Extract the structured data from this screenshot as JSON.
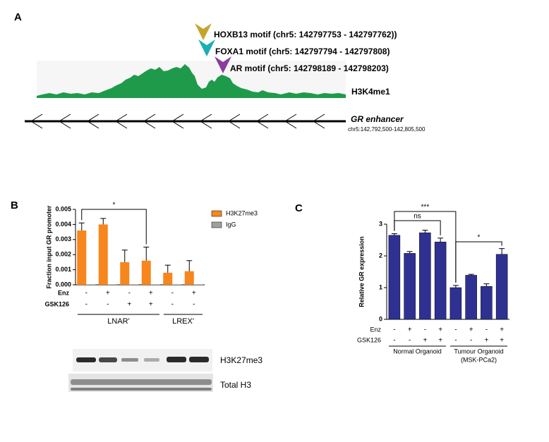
{
  "panel_a": {
    "label": "A",
    "motifs": [
      {
        "label": "HOXB13 motif (chr5: 142797753 - 142797762))",
        "color": "#c4a52c"
      },
      {
        "label": "FOXA1 motif (chr5: 142797794 - 142797808)",
        "color": "#1aaeb4"
      },
      {
        "label": "AR motif (chr5: 142798189 - 142798203)",
        "color": "#8a3d9c"
      }
    ],
    "track_label": "H3K4me1",
    "track_color": "#1e9a4a",
    "enhancer_label": "GR enhancer",
    "coordinates": "chr5:142,792,500-142,805,500"
  },
  "chart_data": [
    {
      "panel": "B",
      "type": "bar",
      "y_label": "Fraction input GR promoter",
      "ylim": [
        0,
        0.005
      ],
      "yticks": [
        {
          "value": 0,
          "label": "0.000"
        },
        0.001,
        0.002,
        0.003,
        0.004,
        0.005
      ],
      "categories": [
        null,
        null,
        null,
        null,
        null,
        null
      ],
      "series": [
        {
          "name": "H3K27me3",
          "color": "#f7861d",
          "values": [
            0.0036,
            0.004,
            0.0015,
            0.0016,
            0.0008,
            0.0009
          ],
          "errors": [
            0.0005,
            0.0004,
            0.0008,
            0.0009,
            0.0005,
            0.0007
          ]
        },
        {
          "name": "IgG",
          "color": "#a0a0a0",
          "values": [
            3e-05,
            3e-05,
            3e-05,
            3e-05,
            3e-05,
            3e-05
          ]
        }
      ],
      "condition_rows": [
        {
          "name": "Enz",
          "values": [
            "-",
            "+",
            "-",
            "+",
            "-",
            "+"
          ]
        },
        {
          "name": "GSK126",
          "values": [
            "-",
            "-",
            "+",
            "+",
            "-",
            "-"
          ]
        }
      ],
      "groups": [
        {
          "label": "LNAR'",
          "count": 4
        },
        {
          "label": "LREX'",
          "count": 2
        }
      ],
      "significance": [
        {
          "label": "*",
          "from": 0,
          "to": 3
        }
      ],
      "legend": "right"
    },
    {
      "panel": "C",
      "type": "bar",
      "y_label": "Relative GR expression",
      "ylim": [
        0,
        3
      ],
      "yticks": [
        0,
        1,
        2,
        3
      ],
      "categories": [
        null,
        null,
        null,
        null,
        null,
        null,
        null,
        null
      ],
      "series": [
        {
          "name": null,
          "color": "#2e3192",
          "values": [
            2.65,
            2.08,
            2.73,
            2.44,
            1.0,
            1.39,
            1.04,
            2.05
          ],
          "errors": [
            0.05,
            0.06,
            0.08,
            0.12,
            0.07,
            0.03,
            0.08,
            0.18
          ]
        }
      ],
      "condition_rows": [
        {
          "name": "Enz",
          "values": [
            "-",
            "+",
            "-",
            "+",
            "-",
            "+",
            "-",
            "+"
          ]
        },
        {
          "name": "GSK126",
          "values": [
            "-",
            "-",
            "+",
            "+",
            "-",
            "-",
            "+",
            "+"
          ]
        }
      ],
      "groups": [
        {
          "label": "Normal Organoid",
          "count": 4
        },
        {
          "label": "Tumour Organoid",
          "sublabel": "(MSK-PCa2)",
          "count": 4
        }
      ],
      "significance": [
        {
          "label": "***",
          "from": 0,
          "to": 4
        },
        {
          "label": "ns",
          "from": 0,
          "to": 3
        },
        {
          "label": "*",
          "from": 4,
          "to": 7
        }
      ]
    }
  ],
  "blot": {
    "bands": [
      {
        "label": "H3K27me3"
      },
      {
        "label": "Total H3"
      }
    ]
  }
}
